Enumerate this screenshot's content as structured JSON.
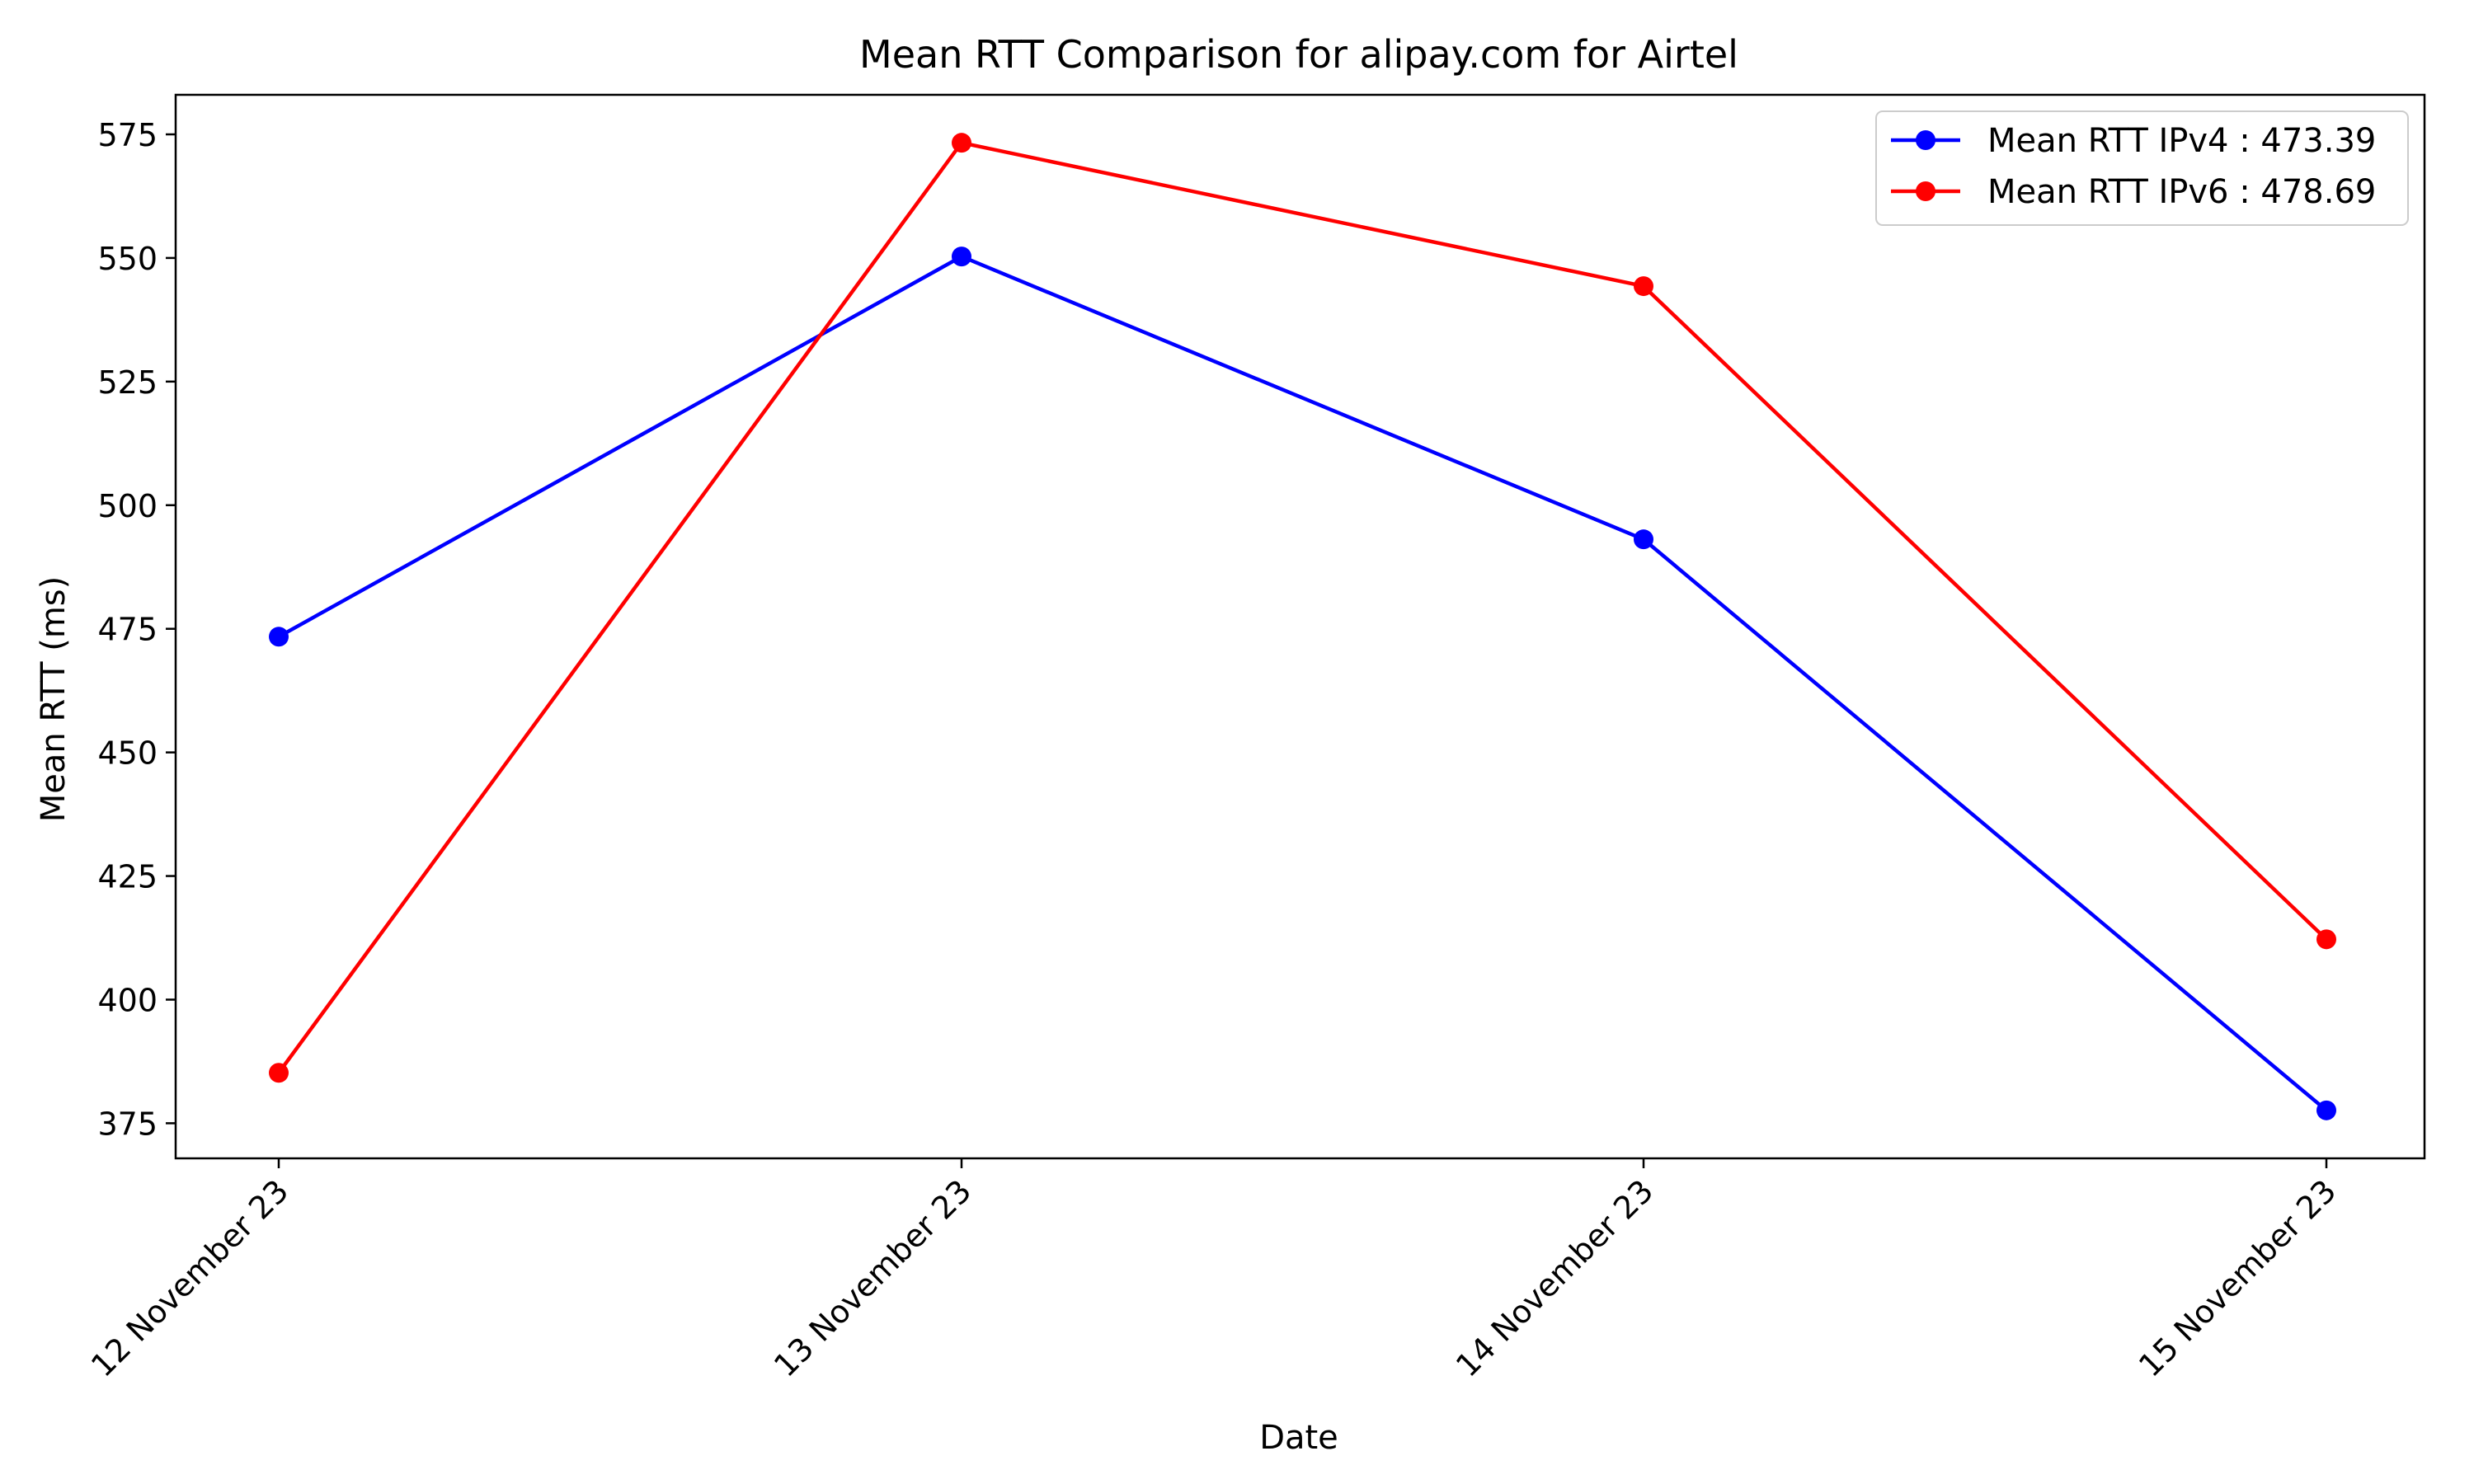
{
  "chart_data": {
    "type": "line",
    "title": "Mean RTT Comparison for alipay.com for Airtel",
    "xlabel": "Date",
    "ylabel": "Mean RTT (ms)",
    "categories": [
      "12 November 23",
      "13 November 23",
      "14 November 23",
      "15 November 23"
    ],
    "series": [
      {
        "name": "Mean RTT IPv4 : 473.39",
        "color": "#0000ff",
        "values": [
          473.4,
          550.3,
          493.1,
          377.6
        ]
      },
      {
        "name": "Mean RTT IPv6 : 478.69",
        "color": "#ff0000",
        "values": [
          385.2,
          573.3,
          544.3,
          412.2
        ]
      }
    ],
    "ylim": [
      367.9,
      583.0
    ],
    "yticks": [
      375,
      400,
      425,
      450,
      475,
      500,
      525,
      550,
      575
    ],
    "grid": false,
    "legend_position": "top-right",
    "marker": "circle"
  }
}
